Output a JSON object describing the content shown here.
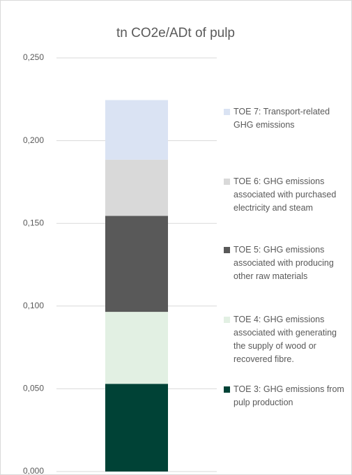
{
  "chart_data": {
    "type": "stacked-bar",
    "title": "tn CO2e/ADt of pulp",
    "categories": [
      null
    ],
    "series": [
      {
        "name": "TOE 3: GHG emissions from pulp production",
        "color": "#004236",
        "values": [
          0.053
        ]
      },
      {
        "name": "TOE 4: GHG emissions associated with generating the supply of wood or recovered fibre.",
        "color": "#e2f0e3",
        "values": [
          0.0435
        ]
      },
      {
        "name": "TOE 5: GHG emissions associated with producing other raw materials",
        "color": "#595959",
        "values": [
          0.058
        ]
      },
      {
        "name": "TOE 6: GHG emissions associated with purchased electricity and steam",
        "color": "#d9d9d9",
        "values": [
          0.034
        ]
      },
      {
        "name": "TOE 7: Transport-related GHG emissions",
        "color": "#dae3f3",
        "values": [
          0.036
        ]
      }
    ],
    "ylim": [
      0,
      0.25
    ],
    "yticks": [
      {
        "value": 0,
        "label": "0,000"
      },
      {
        "value": 0.05,
        "label": "0,050"
      },
      {
        "value": 0.1,
        "label": "0,100"
      },
      {
        "value": 0.15,
        "label": "0,150"
      },
      {
        "value": 0.2,
        "label": "0,200"
      },
      {
        "value": 0.25,
        "label": "0,250"
      }
    ],
    "grid": true,
    "legend": "right"
  }
}
